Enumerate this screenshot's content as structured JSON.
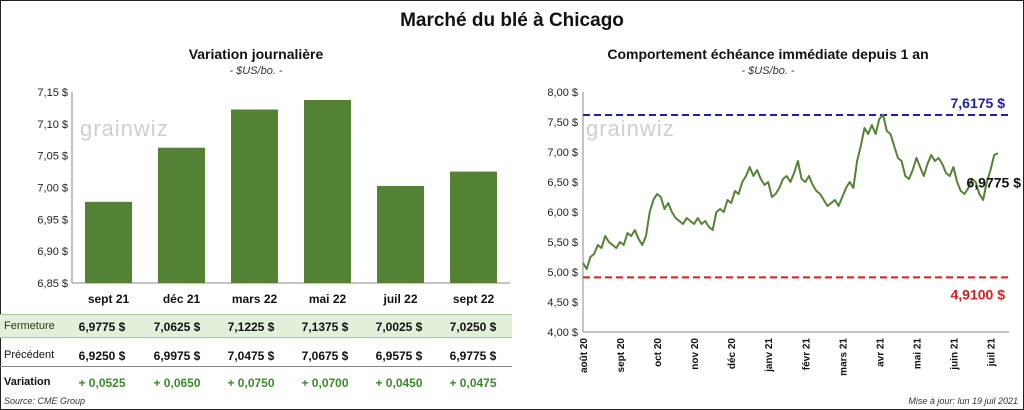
{
  "title": "Marché du blé à Chicago",
  "left": {
    "subtitle": "Variation journalière",
    "unit": "- $US/bo. -",
    "watermark": "grainwiz"
  },
  "right": {
    "subtitle": "Comportement échéance immédiate depuis 1 an",
    "unit": "- $US/bo. -",
    "watermark": "grainwiz"
  },
  "chart_data": [
    {
      "type": "bar",
      "categories": [
        "sept 21",
        "déc 21",
        "mars 22",
        "mai 22",
        "juil 22",
        "sept 22"
      ],
      "values": [
        6.9775,
        7.0625,
        7.1225,
        7.1375,
        7.0025,
        7.025
      ],
      "ylim": [
        6.85,
        7.15
      ],
      "yticks": [
        "6,85 $",
        "6,90 $",
        "6,95 $",
        "7,00 $",
        "7,05 $",
        "7,10 $",
        "7,15 $"
      ],
      "ytick_values": [
        6.85,
        6.9,
        6.95,
        7.0,
        7.05,
        7.1,
        7.15
      ],
      "color": "#548235",
      "grid": false
    },
    {
      "type": "line",
      "x_months": [
        "août 20",
        "sept 20",
        "oct 20",
        "nov 20",
        "déc 20",
        "janv 21",
        "févr 21",
        "mars 21",
        "avr 21",
        "mai 21",
        "juin 21",
        "juil 21"
      ],
      "series": [
        {
          "x": [
            0,
            0.1,
            0.2,
            0.3,
            0.4,
            0.5,
            0.6,
            0.7,
            0.8,
            0.9,
            1.0,
            1.1,
            1.2,
            1.3,
            1.4,
            1.5,
            1.6,
            1.7,
            1.8,
            1.9,
            2.0,
            2.1,
            2.2,
            2.3,
            2.4,
            2.5,
            2.6,
            2.7,
            2.8,
            2.9,
            3.0,
            3.1,
            3.2,
            3.3,
            3.4,
            3.5,
            3.6,
            3.7,
            3.8,
            3.9,
            4.0,
            4.1,
            4.2,
            4.3,
            4.4,
            4.5,
            4.6,
            4.7,
            4.8,
            4.9,
            5.0,
            5.1,
            5.2,
            5.3,
            5.4,
            5.5,
            5.6,
            5.7,
            5.8,
            5.9,
            6.0,
            6.1,
            6.2,
            6.3,
            6.4,
            6.5,
            6.6,
            6.7,
            6.8,
            6.9,
            7.0,
            7.1,
            7.2,
            7.3,
            7.4,
            7.5,
            7.6,
            7.7,
            7.8,
            7.9,
            8.0,
            8.1,
            8.2,
            8.3,
            8.4,
            8.5,
            8.6,
            8.7,
            8.8,
            8.9,
            9.0,
            9.1,
            9.2,
            9.3,
            9.4,
            9.5,
            9.6,
            9.7,
            9.8,
            9.9,
            10.0,
            10.1,
            10.2,
            10.3,
            10.4,
            10.5,
            10.6,
            10.7,
            10.8,
            10.9,
            11.0,
            11.1,
            11.2
          ],
          "values": [
            5.15,
            5.05,
            5.25,
            5.3,
            5.45,
            5.4,
            5.6,
            5.5,
            5.45,
            5.4,
            5.5,
            5.45,
            5.65,
            5.6,
            5.7,
            5.55,
            5.45,
            5.6,
            6.0,
            6.2,
            6.3,
            6.25,
            6.05,
            6.15,
            6.0,
            5.9,
            5.85,
            5.8,
            5.9,
            5.85,
            5.8,
            5.9,
            5.8,
            5.85,
            5.75,
            5.7,
            6.0,
            6.05,
            6.0,
            6.2,
            6.15,
            6.35,
            6.3,
            6.5,
            6.6,
            6.75,
            6.6,
            6.7,
            6.55,
            6.45,
            6.5,
            6.25,
            6.3,
            6.4,
            6.55,
            6.6,
            6.5,
            6.65,
            6.85,
            6.55,
            6.5,
            6.6,
            6.45,
            6.35,
            6.3,
            6.2,
            6.1,
            6.15,
            6.2,
            6.1,
            6.25,
            6.4,
            6.5,
            6.4,
            6.85,
            7.1,
            7.4,
            7.3,
            7.45,
            7.3,
            7.55,
            7.62,
            7.35,
            7.3,
            7.1,
            6.9,
            6.85,
            6.6,
            6.55,
            6.7,
            6.9,
            6.75,
            6.6,
            6.8,
            6.95,
            6.85,
            6.9,
            6.8,
            6.65,
            6.6,
            6.75,
            6.5,
            6.35,
            6.3,
            6.4,
            6.55,
            6.5,
            6.3,
            6.2,
            6.5,
            6.7,
            6.95,
            6.9775
          ],
          "color": "#548235"
        }
      ],
      "ylim": [
        4.0,
        8.0
      ],
      "yticks": [
        "4,00 $",
        "4,50 $",
        "5,00 $",
        "5,50 $",
        "6,00 $",
        "6,50 $",
        "7,00 $",
        "7,50 $",
        "8,00 $"
      ],
      "ytick_values": [
        4.0,
        4.5,
        5.0,
        5.5,
        6.0,
        6.5,
        7.0,
        7.5,
        8.0
      ],
      "high": {
        "value": 7.6175,
        "label": "7,6175 $",
        "color": "#1f1fa8"
      },
      "low": {
        "value": 4.91,
        "label": "4,9100 $",
        "color": "#e01b1b"
      },
      "last": {
        "value": 6.9775,
        "label": "6,9775 $"
      },
      "grid": false
    }
  ],
  "table": {
    "rows": [
      {
        "label": "Fermeture",
        "cells": [
          "6,9775  $",
          "7,0625  $",
          "7,1225  $",
          "7,1375  $",
          "7,0025  $",
          "7,0250  $"
        ]
      },
      {
        "label": "Précédent",
        "cells": [
          "6,9250  $",
          "6,9975  $",
          "7,0475  $",
          "7,0675  $",
          "6,9575  $",
          "6,9775  $"
        ]
      },
      {
        "label": "Variation",
        "cells": [
          "+ 0,0525",
          "+ 0,0650",
          "+ 0,0750",
          "+ 0,0700",
          "+ 0,0450",
          "+ 0,0475"
        ]
      }
    ]
  },
  "source": "Source: CME Group",
  "update": "Mise à jour: lun 19 juil 2021"
}
